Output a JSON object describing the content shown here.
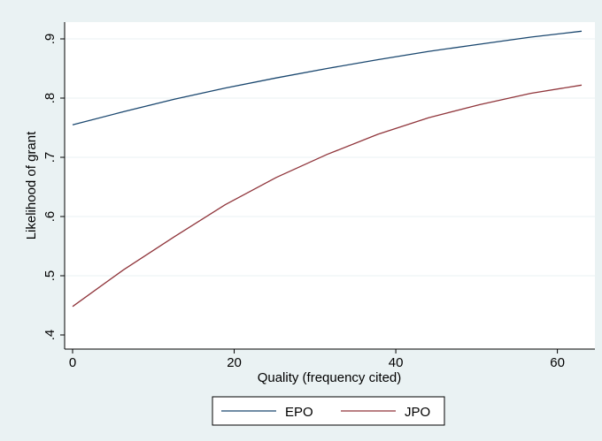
{
  "chart_data": {
    "type": "line",
    "xlabel": "Quality (frequency cited)",
    "ylabel": "Likelihood of grant",
    "xlim": [
      0,
      63
    ],
    "ylim": [
      0.4,
      0.93
    ],
    "xticks": [
      0,
      20,
      40,
      60
    ],
    "xtick_labels": [
      "0",
      "20",
      "40",
      "60"
    ],
    "yticks": [
      0.4,
      0.5,
      0.6,
      0.7,
      0.8,
      0.9
    ],
    "ytick_labels": [
      ".4",
      ".5",
      ".6",
      ".7",
      ".8",
      ".9"
    ],
    "grid": "horizontal",
    "legend_position": "bottom",
    "x": [
      0,
      6.3,
      12.6,
      18.9,
      25.2,
      31.5,
      37.8,
      44.1,
      50.4,
      56.7,
      63
    ],
    "series": [
      {
        "name": "EPO",
        "color": "#1a476f",
        "values": [
          0.755,
          0.777,
          0.798,
          0.817,
          0.834,
          0.85,
          0.865,
          0.879,
          0.891,
          0.903,
          0.913
        ]
      },
      {
        "name": "JPO",
        "color": "#90353b",
        "values": [
          0.448,
          0.51,
          0.566,
          0.62,
          0.666,
          0.705,
          0.739,
          0.767,
          0.789,
          0.808,
          0.822
        ]
      }
    ]
  }
}
